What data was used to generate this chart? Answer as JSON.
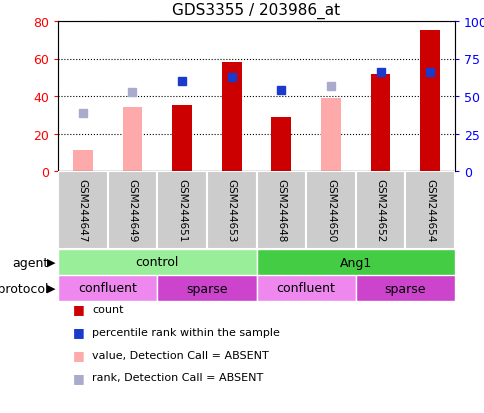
{
  "title": "GDS3355 / 203986_at",
  "samples": [
    "GSM244647",
    "GSM244649",
    "GSM244651",
    "GSM244653",
    "GSM244648",
    "GSM244650",
    "GSM244652",
    "GSM244654"
  ],
  "count_values": [
    null,
    null,
    35,
    58,
    29,
    null,
    52,
    75
  ],
  "count_absent_values": [
    11,
    34,
    35,
    null,
    29,
    39,
    null,
    null
  ],
  "percentile_rank_pct": [
    null,
    null,
    60,
    63,
    54,
    null,
    66,
    66
  ],
  "rank_absent_pct": [
    39,
    53,
    null,
    null,
    null,
    57,
    null,
    null
  ],
  "ylim_left": [
    0,
    80
  ],
  "ylim_right": [
    0,
    100
  ],
  "yticks_left": [
    0,
    20,
    40,
    60,
    80
  ],
  "yticks_right": [
    0,
    25,
    50,
    75,
    100
  ],
  "red_color": "#cc0000",
  "pink_color": "#ffaaaa",
  "blue_color": "#1a3acc",
  "light_blue_color": "#aaaacc",
  "agent_groups": [
    {
      "label": "control",
      "start": 0,
      "end": 4,
      "color": "#99ee99"
    },
    {
      "label": "Ang1",
      "start": 4,
      "end": 8,
      "color": "#44cc44"
    }
  ],
  "growth_groups": [
    {
      "label": "confluent",
      "start": 0,
      "end": 2,
      "color": "#ee88ee"
    },
    {
      "label": "sparse",
      "start": 2,
      "end": 4,
      "color": "#cc44cc"
    },
    {
      "label": "confluent",
      "start": 4,
      "end": 6,
      "color": "#ee88ee"
    },
    {
      "label": "sparse",
      "start": 6,
      "end": 8,
      "color": "#cc44cc"
    }
  ],
  "legend_items": [
    {
      "label": "count",
      "color": "#cc0000"
    },
    {
      "label": "percentile rank within the sample",
      "color": "#1a3acc"
    },
    {
      "label": "value, Detection Call = ABSENT",
      "color": "#ffaaaa"
    },
    {
      "label": "rank, Detection Call = ABSENT",
      "color": "#aaaacc"
    }
  ],
  "fig_width": 4.85,
  "fig_height": 4.14,
  "fig_dpi": 100
}
